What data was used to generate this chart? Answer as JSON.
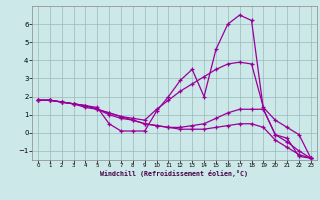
{
  "xlabel": "Windchill (Refroidissement éolien,°C)",
  "background_color": "#cce8e8",
  "plot_bg_color": "#cce8e8",
  "line_color": "#990099",
  "grid_color": "#99bbbb",
  "xlim": [
    -0.5,
    23.5
  ],
  "ylim": [
    -1.5,
    7.0
  ],
  "yticks": [
    -1,
    0,
    1,
    2,
    3,
    4,
    5,
    6
  ],
  "xticks": [
    0,
    1,
    2,
    3,
    4,
    5,
    6,
    7,
    8,
    9,
    10,
    11,
    12,
    13,
    14,
    15,
    16,
    17,
    18,
    19,
    20,
    21,
    22,
    23
  ],
  "lines": [
    {
      "x": [
        0,
        1,
        2,
        3,
        4,
        5,
        6,
        7,
        8,
        9,
        10,
        11,
        12,
        13,
        14,
        15,
        16,
        17,
        18,
        19,
        20,
        21,
        22,
        23
      ],
      "y": [
        1.8,
        1.8,
        1.7,
        1.6,
        1.5,
        1.4,
        0.5,
        0.1,
        0.1,
        0.1,
        1.2,
        2.0,
        2.9,
        3.5,
        2.0,
        4.6,
        6.0,
        6.5,
        6.2,
        1.3,
        -0.1,
        -0.3,
        -1.3,
        -1.4
      ]
    },
    {
      "x": [
        0,
        1,
        2,
        3,
        4,
        5,
        6,
        7,
        8,
        9,
        10,
        11,
        12,
        13,
        14,
        15,
        16,
        17,
        18,
        19,
        20,
        21,
        22,
        23
      ],
      "y": [
        1.8,
        1.8,
        1.7,
        1.6,
        1.4,
        1.3,
        1.1,
        0.9,
        0.8,
        0.7,
        1.3,
        1.8,
        2.3,
        2.7,
        3.1,
        3.5,
        3.8,
        3.9,
        3.8,
        1.4,
        0.7,
        0.3,
        -0.1,
        -1.4
      ]
    },
    {
      "x": [
        0,
        1,
        2,
        3,
        4,
        5,
        6,
        7,
        8,
        9,
        10,
        11,
        12,
        13,
        14,
        15,
        16,
        17,
        18,
        19,
        20,
        21,
        22,
        23
      ],
      "y": [
        1.8,
        1.8,
        1.7,
        1.6,
        1.5,
        1.3,
        1.1,
        0.9,
        0.7,
        0.5,
        0.4,
        0.3,
        0.3,
        0.4,
        0.5,
        0.8,
        1.1,
        1.3,
        1.3,
        1.3,
        -0.1,
        -0.5,
        -1.0,
        -1.4
      ]
    },
    {
      "x": [
        0,
        1,
        2,
        3,
        4,
        5,
        6,
        7,
        8,
        9,
        10,
        11,
        12,
        13,
        14,
        15,
        16,
        17,
        18,
        19,
        20,
        21,
        22,
        23
      ],
      "y": [
        1.8,
        1.8,
        1.7,
        1.6,
        1.5,
        1.3,
        1.0,
        0.8,
        0.7,
        0.5,
        0.4,
        0.3,
        0.2,
        0.2,
        0.2,
        0.3,
        0.4,
        0.5,
        0.5,
        0.3,
        -0.4,
        -0.8,
        -1.2,
        -1.4
      ]
    }
  ]
}
